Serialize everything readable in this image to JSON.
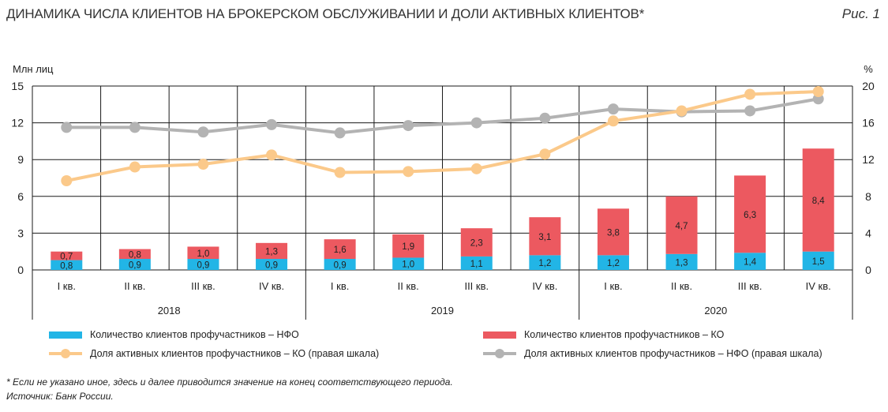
{
  "header": {
    "title": "ДИНАМИКА ЧИСЛА КЛИЕНТОВ НА БРОКЕРСКОМ ОБСЛУЖИВАНИИ И ДОЛИ АКТИВНЫХ КЛИЕНТОВ*",
    "figure": "Рис. 1"
  },
  "chart_data": {
    "type": "bar",
    "stacked": true,
    "categories": [
      "I кв.",
      "II кв.",
      "III кв.",
      "IV кв.",
      "I кв.",
      "II кв.",
      "III кв.",
      "IV кв.",
      "I кв.",
      "II кв.",
      "III кв.",
      "IV кв."
    ],
    "groups": [
      {
        "label": "2018",
        "span": 4
      },
      {
        "label": "2019",
        "span": 4
      },
      {
        "label": "2020",
        "span": 4
      }
    ],
    "ylabel": "Млн лиц",
    "y2label": "%",
    "ylim": [
      0,
      15
    ],
    "yticks": [
      0,
      3,
      6,
      9,
      12,
      15
    ],
    "y2lim": [
      0,
      20
    ],
    "y2ticks": [
      0,
      4,
      8,
      12,
      16,
      20
    ],
    "grid": true,
    "legend_position": "bottom",
    "series": [
      {
        "name": "Количество клиентов профучастников – НФО",
        "type": "bar",
        "axis": "left",
        "color": "#22b5e6",
        "values": [
          0.8,
          0.9,
          0.9,
          0.9,
          0.9,
          1.0,
          1.1,
          1.2,
          1.2,
          1.3,
          1.4,
          1.5
        ],
        "labels": [
          "0,8",
          "0,9",
          "0,9",
          "0,9",
          "0,9",
          "1,0",
          "1,1",
          "1,2",
          "1,2",
          "1,3",
          "1,4",
          "1,5"
        ]
      },
      {
        "name": "Количество клиентов профучастников – КО",
        "type": "bar",
        "axis": "left",
        "color": "#ec5960",
        "values": [
          0.7,
          0.8,
          1.0,
          1.3,
          1.6,
          1.9,
          2.3,
          3.1,
          3.8,
          4.7,
          6.3,
          8.4
        ],
        "labels": [
          "0,7",
          "0,8",
          "1,0",
          "1,3",
          "1,6",
          "1,9",
          "2,3",
          "3,1",
          "3,8",
          "4,7",
          "6,3",
          "8,4"
        ]
      },
      {
        "name": "Доля активных клиентов профучастников – КО (правая шкала)",
        "type": "line",
        "axis": "right",
        "color": "#fbc98a",
        "values": [
          9.7,
          11.2,
          11.5,
          12.5,
          10.6,
          10.7,
          11.0,
          12.6,
          16.2,
          17.3,
          19.1,
          19.4
        ]
      },
      {
        "name": "Доля активных клиентов профучастников – НФО (правая шкала)",
        "type": "line",
        "axis": "right",
        "color": "#b3b3b3",
        "values": [
          15.5,
          15.5,
          15.0,
          15.8,
          14.9,
          15.7,
          16.0,
          16.5,
          17.5,
          17.2,
          17.3,
          18.6
        ]
      }
    ]
  },
  "footnotes": {
    "note": "* Если не указано иное, здесь и далее приводится значение на конец соответствующего периода.",
    "source": "Источник: Банк России."
  }
}
